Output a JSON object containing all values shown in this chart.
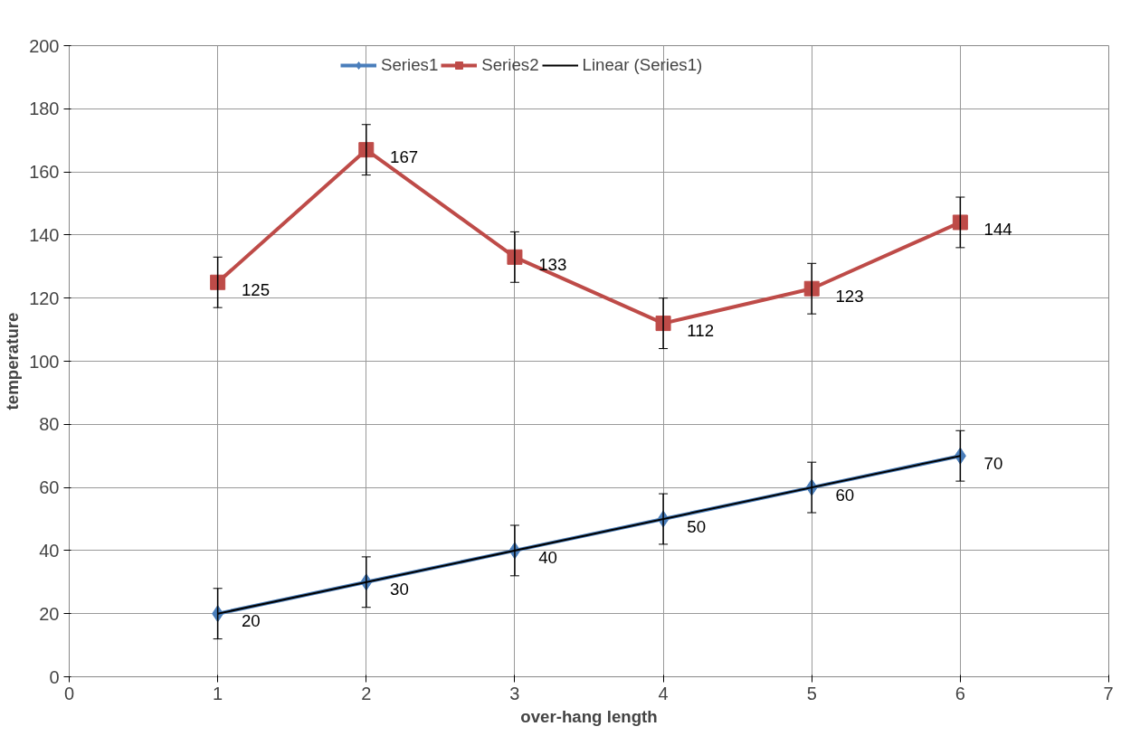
{
  "chart_data": {
    "type": "line",
    "xlabel": "over-hang length",
    "ylabel": "temperature",
    "x": [
      1,
      2,
      3,
      4,
      5,
      6
    ],
    "series": [
      {
        "name": "Series1",
        "color": "#4a7ebb",
        "values": [
          20,
          30,
          40,
          50,
          60,
          70
        ],
        "errors": [
          8,
          8,
          8,
          8,
          8,
          8
        ],
        "marker": "diamond",
        "data_labels": true
      },
      {
        "name": "Series2",
        "color": "#be4b48",
        "values": [
          125,
          167,
          133,
          112,
          123,
          144
        ],
        "errors": [
          8,
          8,
          8,
          8,
          8,
          8
        ],
        "marker": "square",
        "data_labels": true
      },
      {
        "name": "Linear (Series1)",
        "color": "#000000",
        "x": [
          1,
          6
        ],
        "values": [
          20,
          70
        ],
        "marker": "none"
      }
    ],
    "xlim": [
      0,
      7
    ],
    "xticks": [
      0,
      1,
      2,
      3,
      4,
      5,
      6,
      7
    ],
    "ylim": [
      0,
      200
    ],
    "yticks": [
      0,
      20,
      40,
      60,
      80,
      100,
      120,
      140,
      160,
      180,
      200
    ],
    "grid": true,
    "legend": "top",
    "line_style": "solid"
  }
}
